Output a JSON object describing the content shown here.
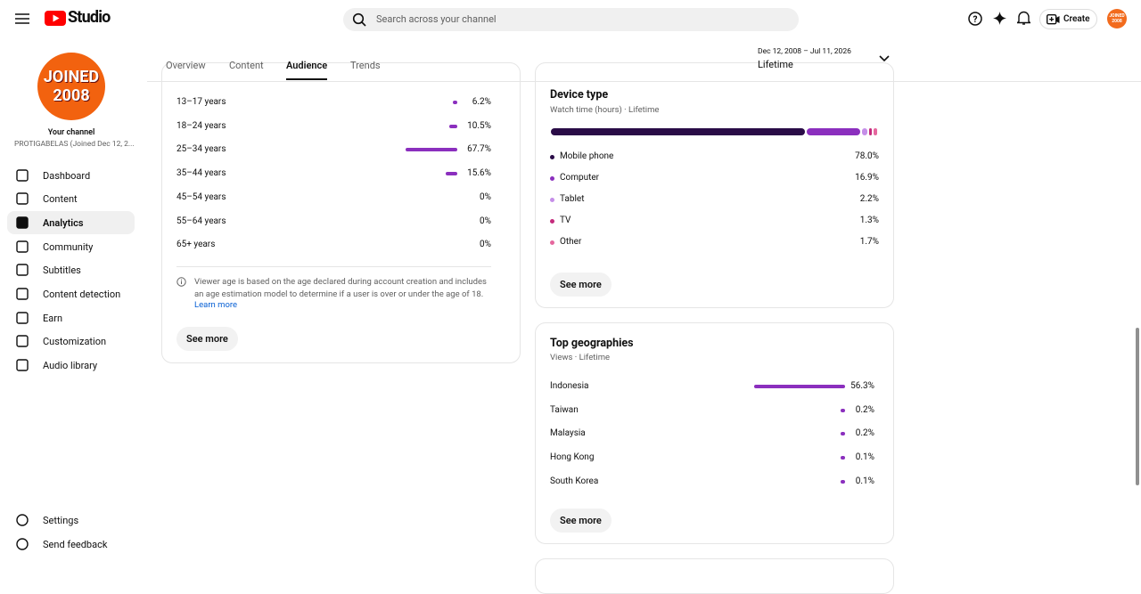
{
  "header": {
    "logo_text": "Studio",
    "search_placeholder": "Search across your channel",
    "create": "Create",
    "avatar_lines": [
      "JOINED",
      "2008"
    ]
  },
  "sidebar": {
    "avatar_lines": [
      "JOINED",
      "2008"
    ],
    "channel_label": "Your channel",
    "channel_name": "PROTIGABELAS (Joined Dec 12, 2...",
    "nav": [
      "Dashboard",
      "Content",
      "Analytics",
      "Community",
      "Subtitles",
      "Content detection",
      "Earn",
      "Customization",
      "Audio library"
    ],
    "footer": [
      "Settings",
      "Send feedback"
    ]
  },
  "tabs": [
    "Overview",
    "Content",
    "Audience",
    "Trends"
  ],
  "date_range": {
    "range": "Dec 12, 2008 – Jul 11, 2026",
    "label": "Lifetime"
  },
  "age": {
    "rows": [
      {
        "label": "13–17 years",
        "value": 6.2,
        "value_label": "6.2%"
      },
      {
        "label": "18–24 years",
        "value": 10.5,
        "value_label": "10.5%"
      },
      {
        "label": "25–34 years",
        "value": 67.7,
        "value_label": "67.7%"
      },
      {
        "label": "35–44 years",
        "value": 15.6,
        "value_label": "15.6%"
      },
      {
        "label": "45–54 years",
        "value": 0,
        "value_label": "0%"
      },
      {
        "label": "55–64 years",
        "value": 0,
        "value_label": "0%"
      },
      {
        "label": "65+ years",
        "value": 0,
        "value_label": "0%"
      }
    ],
    "note": "Viewer age is based on the age declared during account creation and includes an age estimation model to determine if a user is over or under the age of 18.",
    "learn_more": "Learn more",
    "see_more": "See more"
  },
  "device": {
    "title": "Device type",
    "subtitle": "Watch time (hours) · Lifetime",
    "rows": [
      {
        "name": "Mobile phone",
        "value": 78.0,
        "value_label": "78.0%",
        "color": "#2a0c47"
      },
      {
        "name": "Computer",
        "value": 16.9,
        "value_label": "16.9%",
        "color": "#8b2fbe"
      },
      {
        "name": "Tablet",
        "value": 2.2,
        "value_label": "2.2%",
        "color": "#c58ee8"
      },
      {
        "name": "TV",
        "value": 1.3,
        "value_label": "1.3%",
        "color": "#c42b7c"
      },
      {
        "name": "Other",
        "value": 1.7,
        "value_label": "1.7%",
        "color": "#e5679e"
      }
    ],
    "see_more": "See more"
  },
  "geo": {
    "title": "Top geographies",
    "subtitle": "Views · Lifetime",
    "rows": [
      {
        "name": "Indonesia",
        "value": 56.3,
        "value_label": "56.3%"
      },
      {
        "name": "Taiwan",
        "value": 0.2,
        "value_label": "0.2%"
      },
      {
        "name": "Malaysia",
        "value": 0.2,
        "value_label": "0.2%"
      },
      {
        "name": "Hong Kong",
        "value": 0.1,
        "value_label": "0.1%"
      },
      {
        "name": "South Korea",
        "value": 0.1,
        "value_label": "0.1%"
      }
    ],
    "see_more": "See more"
  }
}
